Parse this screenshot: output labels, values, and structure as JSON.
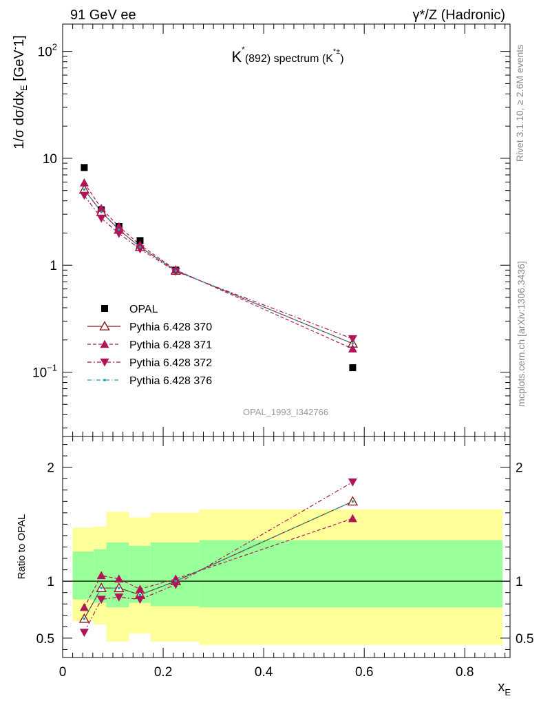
{
  "header": {
    "left": "91 GeV ee",
    "right": "γ*/Z (Hadronic)"
  },
  "side_text": {
    "rivet": "Rivet 3.1.10, ≥ 2.6M events",
    "mcplots": "mcplots.cern.ch [arXiv:1306.3436]"
  },
  "colors": {
    "data": "#000000",
    "p370": "#8b1a1a",
    "p371": "#b0155a",
    "p372": "#b0155a",
    "p376": "#1aa5a5",
    "band_outer": "#ffff99",
    "band_inner": "#99ff99"
  },
  "chart_data": [
    {
      "type": "scatter",
      "panel": "main",
      "title": "K*(892) spectrum (K*±)",
      "title_main": "K",
      "title_sup": "*",
      "title_mid": "(892) spectrum (K",
      "title_sup2": "*±",
      "title_end": ")",
      "ylabel": "1/σ dσ/dx_E [GeV^-1]",
      "yscale": "log",
      "ylim": [
        0.025,
        180
      ],
      "xlim": [
        0,
        0.89
      ],
      "yticks": [
        {
          "value": 0.1,
          "base": "10",
          "exp": "−1"
        },
        {
          "value": 1,
          "label": "1"
        },
        {
          "value": 10,
          "label": "10"
        },
        {
          "value": 100,
          "base": "10",
          "exp": "2"
        }
      ],
      "watermark": "OPAL_1993_I342766",
      "legend_position": "middle-left",
      "series": [
        {
          "name": "OPAL",
          "key": "data",
          "marker": "square",
          "x": [
            0.043,
            0.077,
            0.112,
            0.154,
            0.225,
            0.577
          ],
          "y": [
            8.2,
            3.3,
            2.3,
            1.7,
            0.9,
            0.11
          ]
        },
        {
          "name": "Pythia 6.428 370",
          "key": "p370",
          "marker": "open-triangle-up",
          "dash": "",
          "x": [
            0.043,
            0.077,
            0.112,
            0.154,
            0.225,
            0.577
          ],
          "y": [
            5.1,
            3.15,
            2.15,
            1.48,
            0.89,
            0.185
          ]
        },
        {
          "name": "Pythia 6.428 371",
          "key": "p371",
          "marker": "triangle-up",
          "dash": "5,3",
          "x": [
            0.043,
            0.077,
            0.112,
            0.154,
            0.225,
            0.577
          ],
          "y": [
            5.9,
            3.4,
            2.3,
            1.55,
            0.905,
            0.165
          ]
        },
        {
          "name": "Pythia 6.428 372",
          "key": "p372",
          "marker": "triangle-down",
          "dash": "6,3,2,3",
          "x": [
            0.043,
            0.077,
            0.112,
            0.154,
            0.225,
            0.577
          ],
          "y": [
            4.5,
            2.75,
            1.98,
            1.42,
            0.875,
            0.205
          ]
        },
        {
          "name": "Pythia 6.428 376",
          "key": "p376",
          "marker": "dot",
          "dash": "6,3,1,3",
          "x": [
            0.043,
            0.077,
            0.112,
            0.154,
            0.225,
            0.577
          ],
          "y": [
            5.1,
            3.15,
            2.15,
            1.48,
            0.89,
            0.185
          ]
        }
      ]
    },
    {
      "type": "line",
      "panel": "ratio",
      "ylabel": "Ratio to OPAL",
      "xlabel": "x_E",
      "xlabel_main": "x",
      "xlabel_sub": "E",
      "ylim": [
        0.33,
        2.27
      ],
      "xlim": [
        0,
        0.89
      ],
      "xticks": [
        {
          "value": 0,
          "label": "0"
        },
        {
          "value": 0.2,
          "label": "0.2"
        },
        {
          "value": 0.4,
          "label": "0.4"
        },
        {
          "value": 0.6,
          "label": "0.6"
        },
        {
          "value": 0.8,
          "label": "0.8"
        }
      ],
      "yticks": [
        {
          "value": 0.5,
          "label": "0.5"
        },
        {
          "value": 1,
          "label": "1"
        },
        {
          "value": 2,
          "label": "2"
        }
      ],
      "reference_line": 1,
      "bands": [
        {
          "x0": 0.02,
          "x1": 0.062,
          "outer": [
            0.65,
            1.47
          ],
          "inner": [
            0.84,
            1.26
          ]
        },
        {
          "x0": 0.062,
          "x1": 0.087,
          "outer": [
            0.62,
            1.48
          ],
          "inner": [
            0.81,
            1.28
          ]
        },
        {
          "x0": 0.087,
          "x1": 0.132,
          "outer": [
            0.47,
            1.61
          ],
          "inner": [
            0.77,
            1.34
          ]
        },
        {
          "x0": 0.132,
          "x1": 0.175,
          "outer": [
            0.54,
            1.56
          ],
          "inner": [
            0.81,
            1.31
          ]
        },
        {
          "x0": 0.175,
          "x1": 0.272,
          "outer": [
            0.47,
            1.6
          ],
          "inner": [
            0.78,
            1.34
          ]
        },
        {
          "x0": 0.272,
          "x1": 0.875,
          "outer": [
            0.44,
            1.63
          ],
          "inner": [
            0.77,
            1.36
          ]
        }
      ],
      "series": [
        {
          "name": "Pythia 6.428 370",
          "key": "p370",
          "marker": "open-triangle-up",
          "dash": "",
          "x": [
            0.043,
            0.077,
            0.112,
            0.154,
            0.225,
            0.577
          ],
          "y": [
            0.67,
            0.94,
            0.94,
            0.88,
            1.0,
            1.7
          ]
        },
        {
          "name": "Pythia 6.428 371",
          "key": "p371",
          "marker": "triangle-up",
          "dash": "5,3",
          "x": [
            0.043,
            0.077,
            0.112,
            0.154,
            0.225,
            0.577
          ],
          "y": [
            0.77,
            1.05,
            1.02,
            0.93,
            1.02,
            1.55
          ]
        },
        {
          "name": "Pythia 6.428 372",
          "key": "p372",
          "marker": "triangle-down",
          "dash": "6,3,2,3",
          "x": [
            0.043,
            0.077,
            0.112,
            0.154,
            0.225,
            0.577
          ],
          "y": [
            0.55,
            0.84,
            0.86,
            0.84,
            0.97,
            1.87
          ]
        },
        {
          "name": "Pythia 6.428 376",
          "key": "p376",
          "marker": "dot",
          "dash": "6,3,1,3",
          "x": [
            0.043,
            0.077,
            0.112,
            0.154,
            0.225,
            0.577
          ],
          "y": [
            0.67,
            0.94,
            0.94,
            0.88,
            1.0,
            1.7
          ]
        }
      ]
    }
  ]
}
